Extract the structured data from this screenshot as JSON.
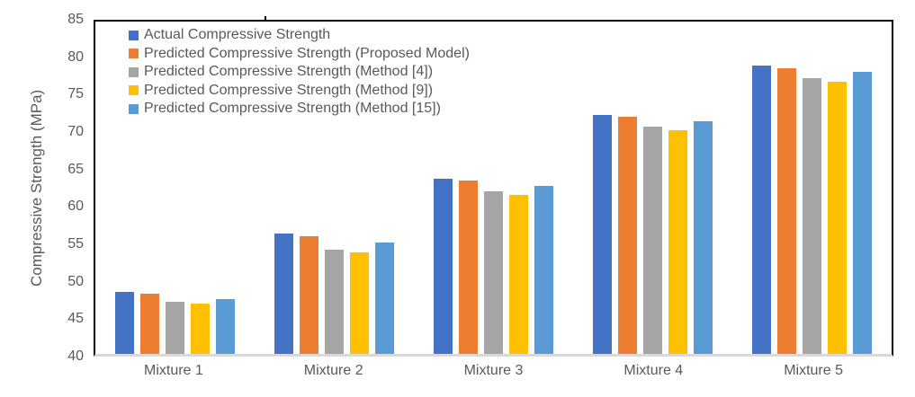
{
  "chart_data": {
    "type": "bar",
    "title": "",
    "xlabel": "",
    "ylabel": "Compressive Strength (MPa)",
    "ylim": [
      40,
      85
    ],
    "ytick_step": 5,
    "yticks": [
      85,
      80,
      75,
      70,
      65,
      60,
      55,
      50,
      45,
      40
    ],
    "grid": false,
    "legend_position": "top-left-inside",
    "categories": [
      "Mixture 1",
      "Mixture 2",
      "Mixture 3",
      "Mixture 4",
      "Mixture 5"
    ],
    "series": [
      {
        "name": "Actual Compressive Strength",
        "color": "#4472C4",
        "values": [
          48.4,
          56.3,
          63.7,
          72.4,
          79.0
        ]
      },
      {
        "name": "Predicted Compressive Strength (Proposed Model)",
        "color": "#ED7D31",
        "values": [
          48.1,
          55.9,
          63.5,
          72.1,
          78.7
        ]
      },
      {
        "name": "Predicted Compressive Strength (Method [4])",
        "color": "#A5A5A5",
        "values": [
          47.0,
          54.1,
          62.0,
          70.8,
          77.4
        ]
      },
      {
        "name": "Predicted Compressive Strength (Method [9])",
        "color": "#FFC000",
        "values": [
          46.8,
          53.8,
          61.5,
          70.3,
          76.9
        ]
      },
      {
        "name": "Predicted Compressive Strength (Method [15])",
        "color": "#5B9BD5",
        "values": [
          47.4,
          55.1,
          62.8,
          71.5,
          78.2
        ]
      }
    ]
  },
  "colors": {
    "plot_border": "#000000",
    "baseline": "#D9D9D9",
    "tick_label": "#595959",
    "legend_text": "#595959",
    "axis_title": "#595959",
    "background": "#FFFFFF"
  }
}
